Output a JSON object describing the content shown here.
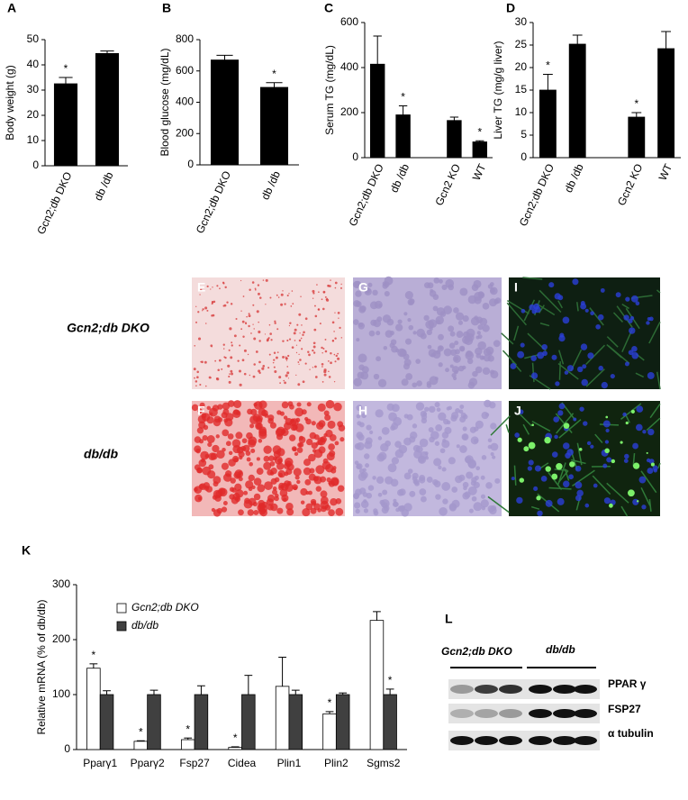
{
  "chart_data": [
    {
      "type": "bar",
      "panel": "A",
      "ylabel": "Body weight (g)",
      "categories": [
        "Gcn2;db DKO",
        "db /db"
      ],
      "values": [
        32.5,
        44.5
      ],
      "errors": [
        2.5,
        1
      ],
      "significance": [
        "*",
        null
      ],
      "color": "#000000",
      "ylim": [
        0,
        50
      ],
      "yticks": [
        0,
        10,
        20,
        30,
        40,
        50
      ]
    },
    {
      "type": "bar",
      "panel": "B",
      "ylabel": "Blood glucose (mg/dL)",
      "categories": [
        "Gcn2;db DKO",
        "db /db"
      ],
      "values": [
        670,
        495
      ],
      "errors": [
        30,
        30
      ],
      "significance": [
        null,
        "*"
      ],
      "color": "#000000",
      "ylim": [
        0,
        800
      ],
      "yticks": [
        0,
        200,
        400,
        600,
        800
      ]
    },
    {
      "type": "bar",
      "panel": "C",
      "ylabel": "Serum TG (mg/dL)",
      "categories": [
        "Gcn2;db DKO",
        "db /db",
        null,
        "Gcn2 KO",
        "WT"
      ],
      "values": [
        415,
        190,
        null,
        165,
        70
      ],
      "errors": [
        125,
        40,
        null,
        15,
        5
      ],
      "significance": [
        null,
        "*",
        null,
        null,
        "*"
      ],
      "color": "#000000",
      "ylim": [
        0,
        600
      ],
      "yticks": [
        0,
        200,
        400,
        600
      ]
    },
    {
      "type": "bar",
      "panel": "D",
      "ylabel": "Liver TG (mg/g liver)",
      "categories": [
        "Gcn2;db DKO",
        "db /db",
        null,
        "Gcn2 KO",
        "WT"
      ],
      "values": [
        15,
        25.2,
        null,
        9,
        24.2
      ],
      "errors": [
        3.5,
        2,
        null,
        1,
        3.8
      ],
      "significance": [
        "*",
        null,
        null,
        "*",
        null
      ],
      "color": "#000000",
      "ylim": [
        0,
        30
      ],
      "yticks": [
        0,
        5,
        10,
        15,
        20,
        25,
        30
      ]
    },
    {
      "type": "bar",
      "panel": "K",
      "ylabel": "Relative mRNA (% of db/db)",
      "categories": [
        "Pparγ1",
        "Pparγ2",
        "Fsp27",
        "Cidea",
        "Plin1",
        "Plin2",
        "Sgms2"
      ],
      "legend": "upper left",
      "series": [
        {
          "name": "Gcn2;db DKO",
          "color": "#ffffff",
          "values": [
            148,
            15,
            18,
            4,
            115,
            65,
            235
          ],
          "errors": [
            8,
            1,
            3,
            1,
            53,
            4,
            16
          ],
          "significance": [
            "*",
            "*",
            "*",
            "*",
            null,
            "*",
            null
          ]
        },
        {
          "name": "db/db",
          "color": "#404040",
          "values": [
            100,
            100,
            100,
            100,
            100,
            100,
            100
          ],
          "errors": [
            7,
            8,
            16,
            35,
            8,
            3,
            10
          ],
          "significance": [
            null,
            null,
            null,
            null,
            null,
            null,
            "*"
          ]
        }
      ],
      "ylim": [
        0,
        300
      ],
      "yticks": [
        0,
        100,
        200,
        300
      ]
    }
  ],
  "histology": {
    "rows": [
      "Gcn2;db DKO",
      "db/db"
    ],
    "panels": [
      "E",
      "G",
      "I",
      "F",
      "H",
      "J"
    ]
  },
  "blot": {
    "panel": "L",
    "groups": [
      "Gcn2;db DKO",
      "db/db"
    ],
    "bands": [
      "PPAR γ",
      "FSP27",
      "α tubulin"
    ]
  }
}
